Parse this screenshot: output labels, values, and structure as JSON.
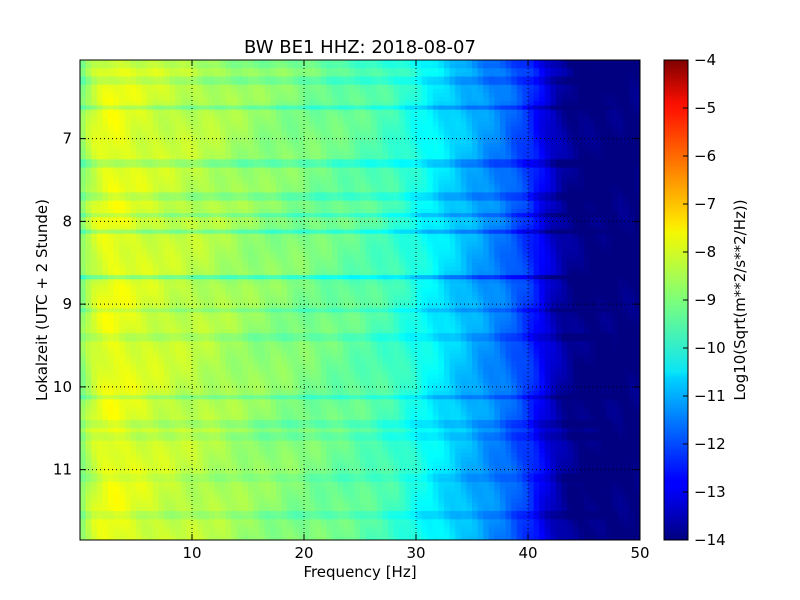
{
  "chart_data": {
    "type": "heatmap",
    "title": "BW BE1 HHZ: 2018-08-07",
    "xlabel": "Frequency [Hz]",
    "ylabel": "Lokalzeit (UTC + 2 Stunde)",
    "xlim": [
      0,
      50
    ],
    "ylim": [
      6.05,
      11.85
    ],
    "y_inverted": true,
    "x_ticks": [
      10,
      20,
      30,
      40,
      50
    ],
    "x_tick_labels": [
      "10",
      "20",
      "30",
      "40",
      "50"
    ],
    "y_ticks": [
      7,
      8,
      9,
      10,
      11
    ],
    "y_tick_labels": [
      "7",
      "8",
      "9",
      "10",
      "11"
    ],
    "grid": "dotted",
    "colormap": "jet",
    "colorbar": {
      "label": "Log10(Sqrt(m**2/s**2/Hz))",
      "range": [
        -14,
        -4
      ],
      "ticks": [
        -4,
        -5,
        -6,
        -7,
        -8,
        -9,
        -10,
        -11,
        -12,
        -13,
        -14
      ],
      "tick_labels": [
        "−4",
        "−5",
        "−6",
        "−7",
        "−8",
        "−9",
        "−10",
        "−11",
        "−12",
        "−13",
        "−14"
      ]
    },
    "spectral_profile": {
      "frequency_hz": [
        0,
        1,
        2,
        3,
        5,
        8,
        12,
        16,
        20,
        25,
        28,
        30,
        32,
        34,
        36,
        38,
        40,
        41,
        42,
        43,
        44,
        45,
        46,
        47,
        50
      ],
      "level": [
        -9.0,
        -8.3,
        -8.0,
        -7.9,
        -8.1,
        -8.3,
        -8.5,
        -8.8,
        -9.0,
        -9.3,
        -9.6,
        -10.0,
        -10.4,
        -10.8,
        -11.2,
        -11.6,
        -12.2,
        -12.7,
        -13.2,
        -13.6,
        -13.85,
        -13.95,
        -14.0,
        -14.0,
        -14.0
      ]
    },
    "bands": [
      {
        "time": 6.1,
        "delta": -0.5
      },
      {
        "time": 6.3,
        "delta": -0.7
      },
      {
        "time": 6.62,
        "delta": -0.6
      },
      {
        "time": 7.3,
        "delta": -1.0
      },
      {
        "time": 7.7,
        "delta": -0.8
      },
      {
        "time": 7.92,
        "delta": -0.5
      },
      {
        "time": 8.12,
        "delta": -0.7
      },
      {
        "time": 8.68,
        "delta": -0.9
      },
      {
        "time": 9.07,
        "delta": -0.4
      },
      {
        "time": 9.4,
        "delta": -0.6
      },
      {
        "time": 10.12,
        "delta": -0.5
      },
      {
        "time": 10.45,
        "delta": -0.6
      },
      {
        "time": 10.6,
        "delta": -0.5
      },
      {
        "time": 11.1,
        "delta": -0.4
      },
      {
        "time": 11.55,
        "delta": -0.6
      }
    ]
  }
}
